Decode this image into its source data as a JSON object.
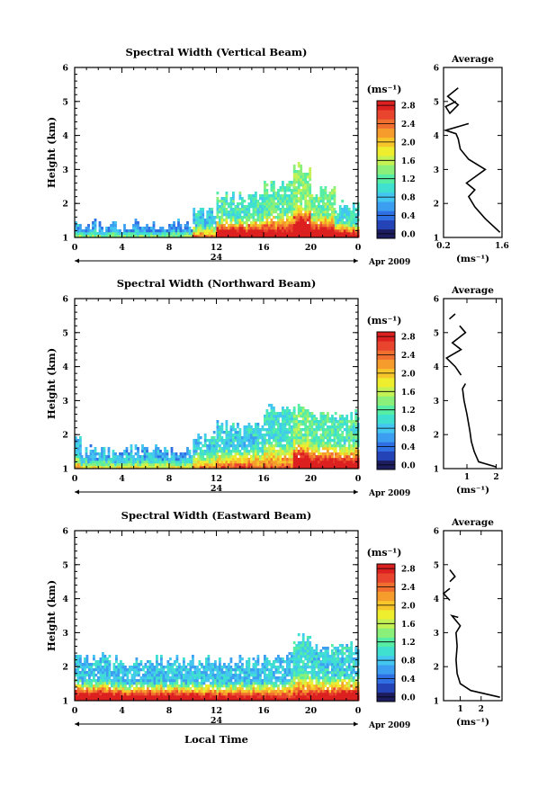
{
  "x_axis_label": "Local Time",
  "date_band": {
    "day": "24",
    "label": "Apr 2009"
  },
  "colorbar": {
    "unit": "(ms⁻¹)",
    "ticks": [
      "0.0",
      "0.4",
      "0.8",
      "1.2",
      "1.6",
      "2.0",
      "2.4",
      "2.8"
    ],
    "colors": [
      "#1c1c5e",
      "#2443b6",
      "#2f6fe4",
      "#3c9ef0",
      "#43c6f0",
      "#3fe0d0",
      "#56eea4",
      "#8af07a",
      "#c4f254",
      "#eeee2e",
      "#f7c62a",
      "#f59c2c",
      "#f06e2e",
      "#e8442e",
      "#dc2020"
    ]
  },
  "chart_data": [
    {
      "type": "heatmap",
      "title": "Spectral Width (Vertical Beam)",
      "xlabel": "",
      "ylabel": "Height (km)",
      "xlim": [
        0,
        24
      ],
      "xticks": [
        "0",
        "4",
        "8",
        "12",
        "16",
        "20",
        "0"
      ],
      "ylim": [
        1,
        6
      ],
      "yticks": [
        "1",
        "2",
        "3",
        "4",
        "5",
        "6"
      ],
      "zlim": [
        0,
        3
      ],
      "echo_columns": [
        {
          "t": [
            0,
            0.5
          ],
          "top": 1.55,
          "base_w": 0.8,
          "mid_w": 0.8
        },
        {
          "t": [
            0.5,
            10
          ],
          "top": 1.4,
          "base_w": 0.7,
          "mid_w": 0.7
        },
        {
          "t": [
            10,
            12
          ],
          "top": 1.8,
          "base_w": 1.4,
          "mid_w": 1.0
        },
        {
          "t": [
            12,
            16
          ],
          "top": 2.2,
          "base_w": 2.4,
          "mid_w": 1.2
        },
        {
          "t": [
            16,
            18.5
          ],
          "top": 2.6,
          "base_w": 2.0,
          "mid_w": 1.3
        },
        {
          "t": [
            18.5,
            20
          ],
          "top": 3.1,
          "base_w": 2.6,
          "mid_w": 1.5
        },
        {
          "t": [
            20,
            22
          ],
          "top": 2.4,
          "base_w": 2.4,
          "mid_w": 1.4
        },
        {
          "t": [
            22,
            24
          ],
          "top": 2.0,
          "base_w": 2.2,
          "mid_w": 1.1
        }
      ],
      "profile": {
        "title": "Average",
        "xlim": [
          0.2,
          1.6
        ],
        "xticks": [
          "0.2",
          "1.6"
        ],
        "xlabel": "(ms⁻¹)",
        "ylim": [
          1,
          6
        ],
        "yticks": [
          "1",
          "2",
          "3",
          "4",
          "5",
          "6"
        ],
        "segments": [
          [
            [
              1.55,
              1.15
            ],
            [
              1.2,
              1.55
            ],
            [
              0.95,
              1.9
            ],
            [
              0.8,
              2.2
            ],
            [
              0.95,
              2.4
            ],
            [
              0.75,
              2.6
            ],
            [
              1.2,
              3.0
            ],
            [
              0.8,
              3.3
            ],
            [
              0.6,
              3.6
            ],
            [
              0.55,
              3.9
            ],
            [
              0.5,
              4.05
            ],
            [
              0.25,
              4.15
            ],
            [
              0.8,
              4.35
            ]
          ],
          [
            [
              0.5,
              5.0
            ],
            [
              0.25,
              4.85
            ],
            [
              0.35,
              4.65
            ],
            [
              0.55,
              4.9
            ],
            [
              0.3,
              5.15
            ],
            [
              0.55,
              5.4
            ]
          ]
        ]
      }
    },
    {
      "type": "heatmap",
      "title": "Spectral Width (Northward Beam)",
      "xlabel": "",
      "ylabel": "Height (km)",
      "xlim": [
        0,
        24
      ],
      "xticks": [
        "0",
        "4",
        "8",
        "12",
        "16",
        "20",
        "0"
      ],
      "ylim": [
        1,
        6
      ],
      "yticks": [
        "1",
        "2",
        "3",
        "4",
        "5",
        "6"
      ],
      "zlim": [
        0,
        3
      ],
      "echo_columns": [
        {
          "t": [
            0,
            0.5
          ],
          "top": 2.1,
          "base_w": 1.2,
          "mid_w": 0.9
        },
        {
          "t": [
            0.5,
            10
          ],
          "top": 1.6,
          "base_w": 1.0,
          "mid_w": 0.8
        },
        {
          "t": [
            10,
            12
          ],
          "top": 2.0,
          "base_w": 1.3,
          "mid_w": 1.0
        },
        {
          "t": [
            12,
            16
          ],
          "top": 2.3,
          "base_w": 1.6,
          "mid_w": 1.0
        },
        {
          "t": [
            16,
            18.5
          ],
          "top": 2.8,
          "base_w": 1.5,
          "mid_w": 1.1
        },
        {
          "t": [
            18.5,
            20
          ],
          "top": 2.8,
          "base_w": 2.5,
          "mid_w": 1.4
        },
        {
          "t": [
            20,
            22
          ],
          "top": 2.6,
          "base_w": 2.2,
          "mid_w": 1.3
        },
        {
          "t": [
            22,
            24
          ],
          "top": 2.6,
          "base_w": 2.2,
          "mid_w": 1.2
        }
      ],
      "profile": {
        "title": "Average",
        "xlim": [
          0.2,
          2.2
        ],
        "xticks": [
          "1",
          "2"
        ],
        "xlabel": "(ms⁻¹)",
        "ylim": [
          1,
          6
        ],
        "yticks": [
          "1",
          "2",
          "3",
          "4",
          "5",
          "6"
        ],
        "segments": [
          [
            [
              2.0,
              1.05
            ],
            [
              1.4,
              1.2
            ],
            [
              1.25,
              1.5
            ],
            [
              1.15,
              1.8
            ],
            [
              1.1,
              2.1
            ],
            [
              1.0,
              2.6
            ],
            [
              0.9,
              3.0
            ],
            [
              0.85,
              3.35
            ],
            [
              0.95,
              3.5
            ]
          ],
          [
            [
              0.8,
              3.75
            ],
            [
              0.6,
              4.0
            ],
            [
              0.3,
              4.25
            ],
            [
              0.8,
              4.5
            ],
            [
              0.5,
              4.7
            ],
            [
              0.95,
              5.0
            ],
            [
              0.75,
              5.2
            ]
          ],
          [
            [
              0.4,
              5.4
            ],
            [
              0.6,
              5.55
            ]
          ]
        ]
      }
    },
    {
      "type": "heatmap",
      "title": "Spectral Width (Eastward Beam)",
      "xlabel": "Local Time",
      "ylabel": "Height (km)",
      "xlim": [
        0,
        24
      ],
      "xticks": [
        "0",
        "4",
        "8",
        "12",
        "16",
        "20",
        "0"
      ],
      "ylim": [
        1,
        6
      ],
      "yticks": [
        "1",
        "2",
        "3",
        "4",
        "5",
        "6"
      ],
      "zlim": [
        0,
        3
      ],
      "echo_columns": [
        {
          "t": [
            0,
            4
          ],
          "top": 2.3,
          "base_w": 2.7,
          "mid_w": 0.9
        },
        {
          "t": [
            4,
            8
          ],
          "top": 2.2,
          "base_w": 2.6,
          "mid_w": 0.9
        },
        {
          "t": [
            8,
            12
          ],
          "top": 2.2,
          "base_w": 2.4,
          "mid_w": 0.9
        },
        {
          "t": [
            12,
            16
          ],
          "top": 2.2,
          "base_w": 2.3,
          "mid_w": 0.9
        },
        {
          "t": [
            16,
            18.5
          ],
          "top": 2.3,
          "base_w": 2.2,
          "mid_w": 0.9
        },
        {
          "t": [
            18.5,
            20
          ],
          "top": 2.9,
          "base_w": 2.0,
          "mid_w": 1.1
        },
        {
          "t": [
            20,
            22
          ],
          "top": 2.6,
          "base_w": 2.3,
          "mid_w": 1.0
        },
        {
          "t": [
            22,
            24
          ],
          "top": 2.6,
          "base_w": 2.4,
          "mid_w": 1.0
        }
      ],
      "profile": {
        "title": "Average",
        "xlim": [
          0.2,
          3.0
        ],
        "xticks": [
          "1",
          "2"
        ],
        "xlabel": "(ms⁻¹)",
        "ylim": [
          1,
          6
        ],
        "yticks": [
          "1",
          "2",
          "3",
          "4",
          "5",
          "6"
        ],
        "segments": [
          [
            [
              2.9,
              1.1
            ],
            [
              1.5,
              1.3
            ],
            [
              1.0,
              1.5
            ],
            [
              0.85,
              1.8
            ],
            [
              0.8,
              2.2
            ],
            [
              0.85,
              2.6
            ],
            [
              0.8,
              3.0
            ],
            [
              1.0,
              3.2
            ],
            [
              0.6,
              3.5
            ],
            [
              0.9,
              3.45
            ]
          ],
          [
            [
              0.5,
              3.95
            ],
            [
              0.2,
              4.15
            ],
            [
              0.5,
              4.3
            ]
          ],
          [
            [
              0.5,
              4.85
            ],
            [
              0.75,
              4.65
            ],
            [
              0.5,
              4.5
            ]
          ]
        ]
      }
    }
  ]
}
